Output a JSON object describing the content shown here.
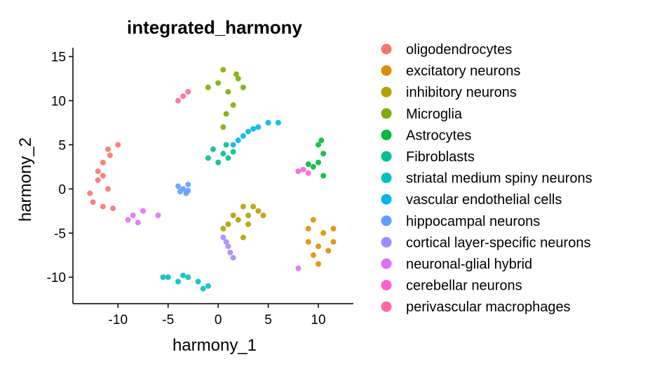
{
  "chart_data": {
    "type": "scatter",
    "title": "integrated_harmony",
    "xlabel": "harmony_1",
    "ylabel": "harmony_2",
    "xlim": [
      -14.5,
      13.5
    ],
    "ylim": [
      -13,
      16
    ],
    "xticks": [
      -10,
      -5,
      0,
      5,
      10
    ],
    "yticks": [
      -10,
      -5,
      0,
      5,
      10,
      15
    ],
    "xtick_labels": [
      "-10",
      "-5",
      "0",
      "5",
      "10"
    ],
    "ytick_labels": [
      "-10",
      "-5",
      "0",
      "5",
      "10",
      "15"
    ],
    "grid": false,
    "legend_position": "right",
    "series": [
      {
        "name": "oligodendrocytes",
        "color": "#F8766D",
        "points": [
          [
            -12.5,
            -1.5
          ],
          [
            -12.0,
            1.0
          ],
          [
            -11.5,
            3.0
          ],
          [
            -11.0,
            4.5
          ],
          [
            -10.0,
            5.0
          ],
          [
            -12.8,
            -0.5
          ],
          [
            -11.5,
            -2.0
          ],
          [
            -10.5,
            -2.2
          ],
          [
            -12.0,
            2.0
          ],
          [
            -11.0,
            0.0
          ],
          [
            -11.5,
            1.5
          ],
          [
            -10.8,
            3.8
          ]
        ]
      },
      {
        "name": "excitatory neurons",
        "color": "#DE8C00",
        "points": [
          [
            9.0,
            -4.5
          ],
          [
            10.5,
            -5.0
          ],
          [
            11.5,
            -6.0
          ],
          [
            10.0,
            -6.5
          ],
          [
            9.5,
            -7.5
          ],
          [
            11.0,
            -7.0
          ],
          [
            10.0,
            -8.5
          ],
          [
            9.5,
            -3.5
          ],
          [
            11.5,
            -4.5
          ],
          [
            9.0,
            -6.0
          ]
        ]
      },
      {
        "name": "inhibitory neurons",
        "color": "#B79F00",
        "points": [
          [
            2.0,
            -3.5
          ],
          [
            3.0,
            -3.0
          ],
          [
            4.0,
            -2.5
          ],
          [
            1.0,
            -4.0
          ],
          [
            2.5,
            -2.0
          ],
          [
            0.5,
            -4.5
          ],
          [
            3.0,
            -4.0
          ],
          [
            1.5,
            -3.0
          ],
          [
            3.5,
            -2.0
          ],
          [
            4.5,
            -3.0
          ],
          [
            2.5,
            -5.5
          ]
        ]
      },
      {
        "name": "Microglia",
        "color": "#7CAE00",
        "points": [
          [
            0.0,
            12.0
          ],
          [
            1.0,
            11.0
          ],
          [
            2.0,
            12.5
          ],
          [
            0.5,
            13.5
          ],
          [
            1.5,
            9.5
          ],
          [
            2.5,
            11.5
          ],
          [
            -1.0,
            11.5
          ],
          [
            0.8,
            8.5
          ],
          [
            0.5,
            7.0
          ],
          [
            1.8,
            13.0
          ]
        ]
      },
      {
        "name": "Astrocytes",
        "color": "#00BA38",
        "points": [
          [
            10.0,
            3.0
          ],
          [
            10.5,
            4.0
          ],
          [
            10.0,
            5.0
          ],
          [
            9.5,
            2.5
          ],
          [
            10.5,
            1.5
          ],
          [
            9.0,
            2.8
          ],
          [
            10.3,
            5.5
          ]
        ]
      },
      {
        "name": "Fibroblasts",
        "color": "#00C08B",
        "points": [
          [
            0.5,
            4.0
          ],
          [
            1.0,
            3.5
          ],
          [
            -0.5,
            4.5
          ],
          [
            0.0,
            3.0
          ],
          [
            0.8,
            5.0
          ],
          [
            -1.0,
            3.5
          ],
          [
            1.5,
            4.2
          ]
        ]
      },
      {
        "name": "striatal medium spiny neurons",
        "color": "#00BFC4",
        "points": [
          [
            -5.0,
            -10.0
          ],
          [
            -4.0,
            -10.5
          ],
          [
            -3.0,
            -10.0
          ],
          [
            -2.0,
            -10.5
          ],
          [
            -1.0,
            -11.0
          ],
          [
            -5.5,
            -10.0
          ],
          [
            -3.5,
            -9.8
          ],
          [
            -1.5,
            -11.3
          ]
        ]
      },
      {
        "name": "vascular endothelial cells",
        "color": "#00B4F0",
        "points": [
          [
            2.0,
            5.5
          ],
          [
            3.0,
            6.5
          ],
          [
            4.0,
            7.0
          ],
          [
            5.0,
            7.5
          ],
          [
            6.0,
            7.5
          ],
          [
            2.5,
            6.0
          ],
          [
            3.5,
            6.8
          ],
          [
            1.5,
            5.0
          ]
        ]
      },
      {
        "name": "hippocampal neurons",
        "color": "#619CFF",
        "points": [
          [
            -3.5,
            0.0
          ],
          [
            -3.0,
            0.5
          ],
          [
            -3.8,
            -0.3
          ],
          [
            -3.2,
            -0.5
          ],
          [
            -4.0,
            0.3
          ],
          [
            -3.0,
            -0.2
          ]
        ]
      },
      {
        "name": "cortical layer-specific neurons",
        "color": "#A58AFF",
        "points": [
          [
            1.0,
            -6.5
          ],
          [
            1.2,
            -7.2
          ],
          [
            0.8,
            -6.0
          ],
          [
            1.5,
            -7.8
          ],
          [
            0.5,
            -5.5
          ]
        ]
      },
      {
        "name": "neuronal-glial hybrid",
        "color": "#DF70F8",
        "points": [
          [
            -8.5,
            -3.0
          ],
          [
            -7.5,
            -2.5
          ],
          [
            -9.0,
            -3.5
          ],
          [
            -6.0,
            -3.0
          ],
          [
            -8.0,
            -3.8
          ],
          [
            8.0,
            -9.0
          ]
        ]
      },
      {
        "name": "cerebellar neurons",
        "color": "#FB61D7",
        "points": [
          [
            8.0,
            2.0
          ],
          [
            8.5,
            2.2
          ],
          [
            9.0,
            1.8
          ]
        ]
      },
      {
        "name": "perivascular macrophages",
        "color": "#FF67A4",
        "points": [
          [
            -4.0,
            10.0
          ],
          [
            -3.5,
            10.5
          ],
          [
            -3.0,
            11.0
          ]
        ]
      }
    ]
  }
}
